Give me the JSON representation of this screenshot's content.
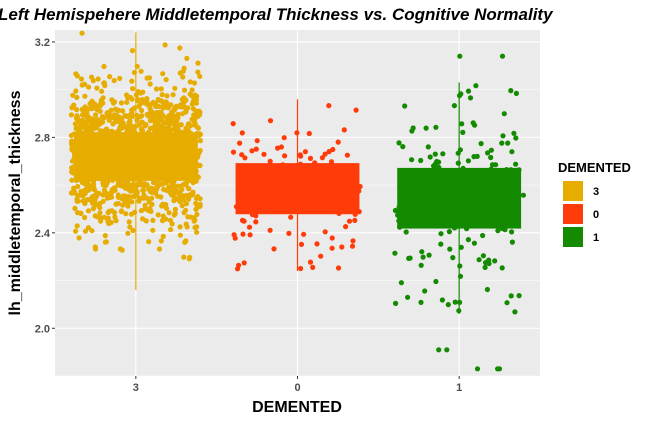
{
  "chart_data": {
    "type": "box",
    "title": "Left Hemispehere Middletemporal Thickness vs. Cognitive Normality",
    "xlabel": "DEMENTED",
    "ylabel": "lh_middletemporal_thickness",
    "ylim": [
      1.8,
      3.25
    ],
    "yticks": [
      2.0,
      2.4,
      2.8,
      3.2
    ],
    "yticks_labels": [
      "2.0",
      "2.4",
      "2.8",
      "3.2"
    ],
    "categories": [
      "3",
      "0",
      "1"
    ],
    "grid": true,
    "legend": {
      "title": "DEMENTED",
      "position": "right",
      "items": [
        {
          "label": "3",
          "color": "#E6AC00"
        },
        {
          "label": "0",
          "color": "#FF3B0A"
        },
        {
          "label": "1",
          "color": "#138A00"
        }
      ]
    },
    "series": [
      {
        "category": "3",
        "color": "#E6AC00",
        "min": 2.16,
        "q1": 2.62,
        "median": 2.72,
        "q3": 2.82,
        "max": 3.24,
        "n_points": 1400
      },
      {
        "category": "0",
        "color": "#FF3B0A",
        "min": 2.24,
        "q1": 2.48,
        "median": 2.59,
        "q3": 2.69,
        "max": 2.96,
        "n_points": 130
      },
      {
        "category": "1",
        "color": "#138A00",
        "min": 2.06,
        "q1": 2.42,
        "median": 2.55,
        "q3": 2.67,
        "max": 3.03,
        "n_points": 220,
        "outliers": [
          3.14,
          3.14,
          1.91,
          1.91,
          1.83,
          1.83,
          1.83
        ]
      }
    ]
  }
}
